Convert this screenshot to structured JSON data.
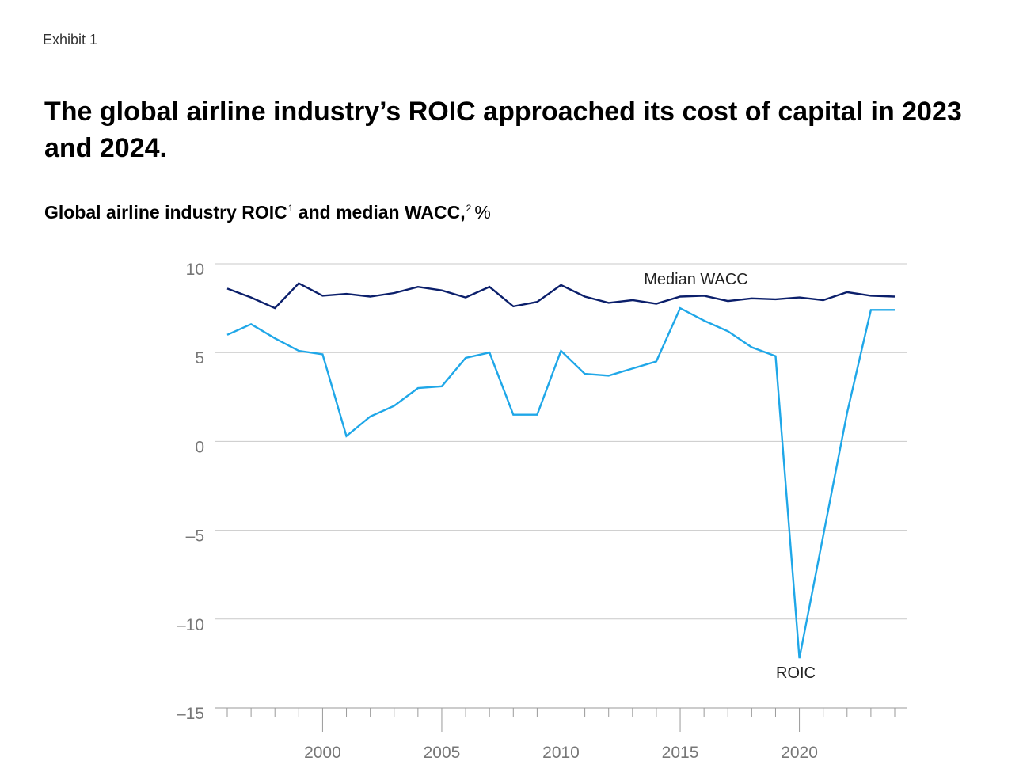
{
  "header": {
    "exhibit": "Exhibit 1",
    "headline": "The global airline industry’s ROIC approached its cost of capital in 2023 and 2024.",
    "subtitle_part1": "Global airline industry ROIC",
    "subtitle_sup1": "1",
    "subtitle_part2": " and median WACC,",
    "subtitle_sup2": "2",
    "subtitle_unit": "%"
  },
  "colors": {
    "wacc": "#0b1f6b",
    "roic": "#1fa7e8",
    "grid": "#c9c9c9",
    "tick_text": "#777777"
  },
  "chart_data": {
    "type": "line",
    "title": "Global airline industry ROIC and median WACC, %",
    "xlabel": "",
    "ylabel": "%",
    "xlim": [
      1996,
      2024
    ],
    "ylim": [
      -15,
      10
    ],
    "yticks": [
      10,
      5,
      0,
      -5,
      -10,
      -15
    ],
    "ytick_labels": [
      "10",
      "5",
      "0",
      "–5",
      "–10",
      "–15"
    ],
    "xticks_labeled": [
      2000,
      2005,
      2010,
      2015,
      2020
    ],
    "xtick_labels": [
      "2000",
      "2005",
      "2010",
      "2015",
      "2020"
    ],
    "grid": true,
    "legend": "inline labels",
    "x": [
      1996,
      1997,
      1998,
      1999,
      2000,
      2001,
      2002,
      2003,
      2004,
      2005,
      2006,
      2007,
      2008,
      2009,
      2010,
      2011,
      2012,
      2013,
      2014,
      2015,
      2016,
      2017,
      2018,
      2019,
      2020,
      2021,
      2022,
      2023,
      2024
    ],
    "series": [
      {
        "name": "Median WACC",
        "label": "Median WACC",
        "values": [
          8.6,
          8.1,
          7.5,
          8.9,
          8.2,
          8.3,
          8.15,
          8.35,
          8.7,
          8.5,
          8.1,
          8.7,
          7.6,
          7.85,
          8.8,
          8.15,
          7.8,
          7.95,
          7.75,
          8.15,
          8.2,
          7.9,
          8.05,
          8.0,
          8.1,
          7.95,
          8.4,
          8.2,
          8.15
        ]
      },
      {
        "name": "ROIC",
        "label": "ROIC",
        "values": [
          6.0,
          6.6,
          5.8,
          5.1,
          4.9,
          0.3,
          1.4,
          2.0,
          3.0,
          3.1,
          4.7,
          5.0,
          1.5,
          1.5,
          5.1,
          3.8,
          3.7,
          4.1,
          4.5,
          7.5,
          6.8,
          6.2,
          5.3,
          4.8,
          -12.2,
          -5.3,
          1.6,
          7.4,
          7.4
        ]
      }
    ]
  }
}
